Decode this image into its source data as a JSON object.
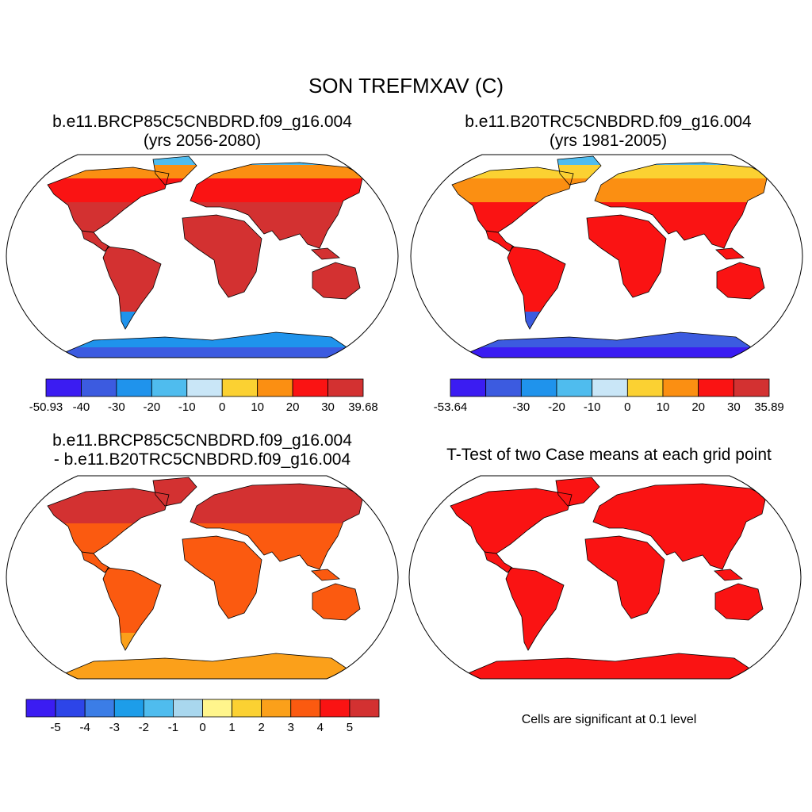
{
  "title": "SON TREFMXAV (C)",
  "panels": [
    {
      "title_line1": "b.e11.BRCP85C5CNBDRD.f09_g16.004",
      "title_line2": "(yrs 2056-2080)",
      "colorbar": {
        "colors": [
          "#3b1cf2",
          "#3c5be0",
          "#1f93ec",
          "#4fbcee",
          "#c9e6f7",
          "#fbd132",
          "#fb8f12",
          "#fa1313",
          "#d33131"
        ],
        "labels": [
          "-50.93",
          "-40",
          "-30",
          "-20",
          "-10",
          "0",
          "10",
          "20",
          "30",
          "39.68"
        ]
      },
      "fills": {
        "land": "#d33131",
        "north_band": "#fa1313",
        "north_cold": "#fb8f12",
        "arctic": "#4fbcee",
        "antarctica": "#1f93ec",
        "ant_core": "#3c5be0"
      }
    },
    {
      "title_line1": "b.e11.B20TRC5CNBDRD.f09_g16.004",
      "title_line2": "(yrs 1981-2005)",
      "colorbar": {
        "colors": [
          "#3b1cf2",
          "#3c5be0",
          "#1f93ec",
          "#4fbcee",
          "#c9e6f7",
          "#fbd132",
          "#fb8f12",
          "#fa1313",
          "#d33131"
        ],
        "labels": [
          "-53.64",
          "",
          "-30",
          "-20",
          "-10",
          "0",
          "10",
          "20",
          "30",
          "35.89"
        ]
      },
      "fills": {
        "land": "#fa1313",
        "north_band": "#fb8f12",
        "north_cold": "#fbd132",
        "arctic": "#4fbcee",
        "antarctica": "#3c5be0",
        "ant_core": "#3b1cf2"
      }
    },
    {
      "title_line1": "b.e11.BRCP85C5CNBDRD.f09_g16.004",
      "title_line2": "- b.e11.B20TRC5CNBDRD.f09_g16.004",
      "colorbar": {
        "colors": [
          "#3b1cf2",
          "#2d45e8",
          "#3b7de6",
          "#1d9de9",
          "#4fbcee",
          "#a9d7ee",
          "#fff58c",
          "#fbd132",
          "#fba01a",
          "#fb5a10",
          "#fa1313",
          "#d33131"
        ],
        "labels": [
          "-5",
          "-4",
          "-3",
          "-2",
          "-1",
          "0",
          "1",
          "2",
          "3",
          "4",
          "5"
        ]
      },
      "fills": {
        "land": "#fb5a10",
        "north_band": "#d33131",
        "north_cold": "#d33131",
        "arctic": "#d33131",
        "antarctica": "#fba01a",
        "ant_core": "#fba01a"
      }
    },
    {
      "title_line1": "T-Test of two Case means at each grid point",
      "note": "Cells are significant at 0.1 level",
      "fills": {
        "land": "#fa1313",
        "north_band": "#fa1313",
        "north_cold": "#fa1313",
        "arctic": "#fa1313",
        "antarctica": "#fa1313",
        "ant_core": "#fa1313"
      }
    }
  ]
}
